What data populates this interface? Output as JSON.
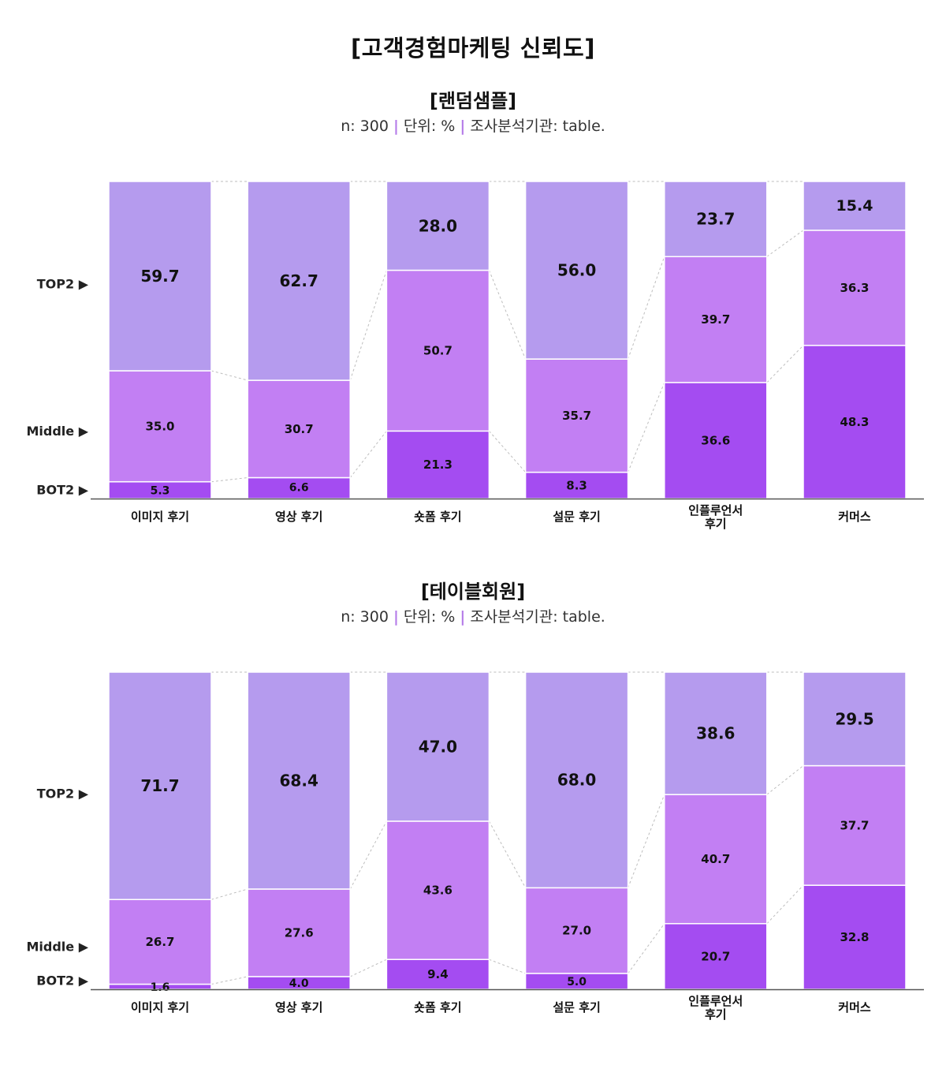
{
  "main_title": "[고객경험마케팅 신뢰도]",
  "colors": {
    "top": "#b59bee",
    "middle": "#c27ff3",
    "bottom": "#a44cf1",
    "axis": "#555555"
  },
  "legend_labels": [
    "TOP2 ▶",
    "Middle ▶",
    "BOT2 ▶"
  ],
  "sections": [
    {
      "title": "[랜덤샘플]",
      "meta": {
        "n": "n: 300",
        "unit": "단위: %",
        "source": "조사분석기관: table."
      }
    },
    {
      "title": "[테이블회원]",
      "meta": {
        "n": "n: 300",
        "unit": "단위: %",
        "source": "조사분석기관: table."
      }
    }
  ],
  "chart_data": [
    {
      "type": "bar",
      "stacked": true,
      "categories": [
        [
          "이미지 후기"
        ],
        [
          "영상 후기"
        ],
        [
          "숏폼 후기"
        ],
        [
          "설문 후기"
        ],
        [
          "인플루언서",
          "후기"
        ],
        [
          "커머스"
        ]
      ],
      "series": [
        {
          "name": "BOT2",
          "values": [
            5.3,
            6.6,
            21.3,
            8.3,
            36.6,
            48.3
          ]
        },
        {
          "name": "Middle",
          "values": [
            35.0,
            30.7,
            50.7,
            35.7,
            39.7,
            36.3
          ]
        },
        {
          "name": "TOP2",
          "values": [
            59.7,
            62.7,
            28.0,
            56.0,
            23.7,
            15.4
          ]
        }
      ],
      "ylim": [
        0,
        100
      ]
    },
    {
      "type": "bar",
      "stacked": true,
      "categories": [
        [
          "이미지 후기"
        ],
        [
          "영상 후기"
        ],
        [
          "숏폼 후기"
        ],
        [
          "설문 후기"
        ],
        [
          "인플루언서",
          "후기"
        ],
        [
          "커머스"
        ]
      ],
      "series": [
        {
          "name": "BOT2",
          "values": [
            1.6,
            4.0,
            9.4,
            5.0,
            20.7,
            32.8
          ]
        },
        {
          "name": "Middle",
          "values": [
            26.7,
            27.6,
            43.6,
            27.0,
            40.7,
            37.7
          ]
        },
        {
          "name": "TOP2",
          "values": [
            71.7,
            68.4,
            47.0,
            68.0,
            38.6,
            29.5
          ]
        }
      ],
      "ylim": [
        0,
        100
      ]
    }
  ]
}
